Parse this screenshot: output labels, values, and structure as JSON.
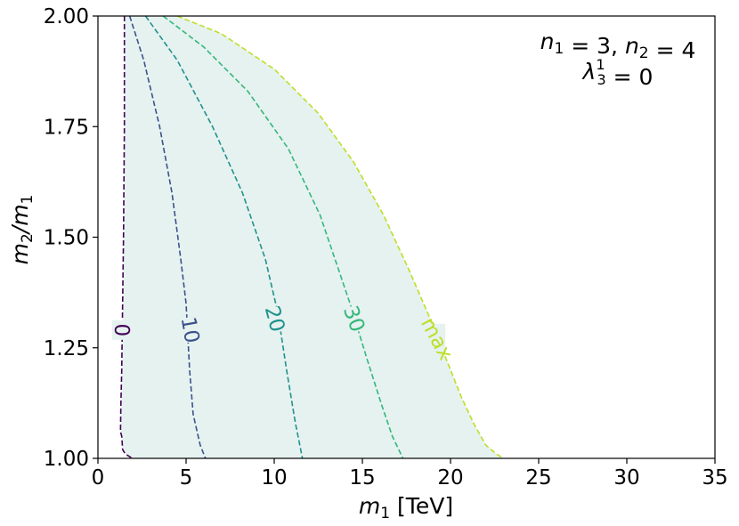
{
  "chart_data": {
    "type": "line",
    "title": "",
    "xlabel_var": "m",
    "xlabel_sub": "1",
    "xlabel_unit": " [TeV]",
    "ylabel_num": "m",
    "ylabel_num_sub": "2",
    "ylabel_den": "/m",
    "ylabel_den_sub": "1",
    "xlim": [
      0,
      35
    ],
    "ylim": [
      1.0,
      2.0
    ],
    "xticks": [
      0,
      5,
      10,
      15,
      20,
      25,
      30,
      35
    ],
    "xtick_labels": [
      "0",
      "5",
      "10",
      "15",
      "20",
      "25",
      "30",
      "35"
    ],
    "yticks": [
      1.0,
      1.25,
      1.5,
      1.75,
      2.0
    ],
    "ytick_labels": [
      "1.00",
      "1.25",
      "1.50",
      "1.75",
      "2.00"
    ],
    "grid": false,
    "shaded_region": {
      "between": [
        "0",
        "max"
      ],
      "color": "#e5f2f0"
    },
    "annotation": {
      "line1": [
        {
          "t": "n",
          "s": "italic"
        },
        {
          "t": "1",
          "s": "sub"
        },
        {
          "t": " = 3, "
        },
        {
          "t": "n",
          "s": "italic"
        },
        {
          "t": "2",
          "s": "sub"
        },
        {
          "t": " = 4"
        }
      ],
      "line2": [
        {
          "t": "λ",
          "s": "italic"
        },
        {
          "t": "1",
          "s": "sup"
        },
        {
          "t": "3",
          "s": "subback"
        },
        {
          "t": " = 0"
        }
      ]
    },
    "series": [
      {
        "name": "0",
        "color": "#440154",
        "label": "0",
        "label_at": [
          1.3,
          1.29
        ],
        "label_rot": 90,
        "x": [
          1.5,
          1.5,
          1.45,
          1.4,
          1.35,
          1.3,
          1.28,
          1.35,
          1.4,
          1.55,
          1.95
        ],
        "y": [
          2.0,
          1.75,
          1.5,
          1.35,
          1.2,
          1.12,
          1.06,
          1.05,
          1.02,
          1.01,
          1.0
        ]
      },
      {
        "name": "10",
        "color": "#3b528b",
        "label": "10",
        "label_at": [
          5.2,
          1.29
        ],
        "label_rot": 80,
        "x": [
          1.8,
          2.6,
          3.5,
          4.2,
          4.7,
          5.0,
          5.2,
          5.4,
          5.8,
          6.1
        ],
        "y": [
          2.0,
          1.9,
          1.75,
          1.6,
          1.45,
          1.35,
          1.2,
          1.1,
          1.03,
          1.0
        ]
      },
      {
        "name": "20",
        "color": "#21918c",
        "label": "20",
        "label_at": [
          10.0,
          1.315
        ],
        "label_rot": 75,
        "x": [
          2.7,
          4.5,
          6.5,
          8.2,
          9.5,
          10.2,
          10.7,
          11.2,
          11.6
        ],
        "y": [
          2.0,
          1.9,
          1.75,
          1.6,
          1.45,
          1.33,
          1.2,
          1.08,
          1.0
        ]
      },
      {
        "name": "30",
        "color": "#35b779",
        "label": "30",
        "label_at": [
          14.5,
          1.315
        ],
        "label_rot": 70,
        "x": [
          3.7,
          6.0,
          8.5,
          10.8,
          12.6,
          14.3,
          15.3,
          16.1,
          16.7,
          17.3
        ],
        "y": [
          2.0,
          1.93,
          1.83,
          1.7,
          1.55,
          1.35,
          1.22,
          1.12,
          1.05,
          1.0
        ]
      },
      {
        "name": "max",
        "color": "#bddf26",
        "label": "max",
        "label_at": [
          19.2,
          1.27
        ],
        "label_rot": 62,
        "x": [
          4.5,
          7.0,
          10.0,
          12.5,
          14.5,
          16.2,
          17.6,
          18.8,
          19.8,
          20.6,
          21.3,
          22.0,
          22.6,
          23.0
        ],
        "y": [
          2.0,
          1.96,
          1.88,
          1.78,
          1.67,
          1.55,
          1.43,
          1.32,
          1.22,
          1.14,
          1.08,
          1.03,
          1.01,
          1.0
        ]
      }
    ]
  }
}
